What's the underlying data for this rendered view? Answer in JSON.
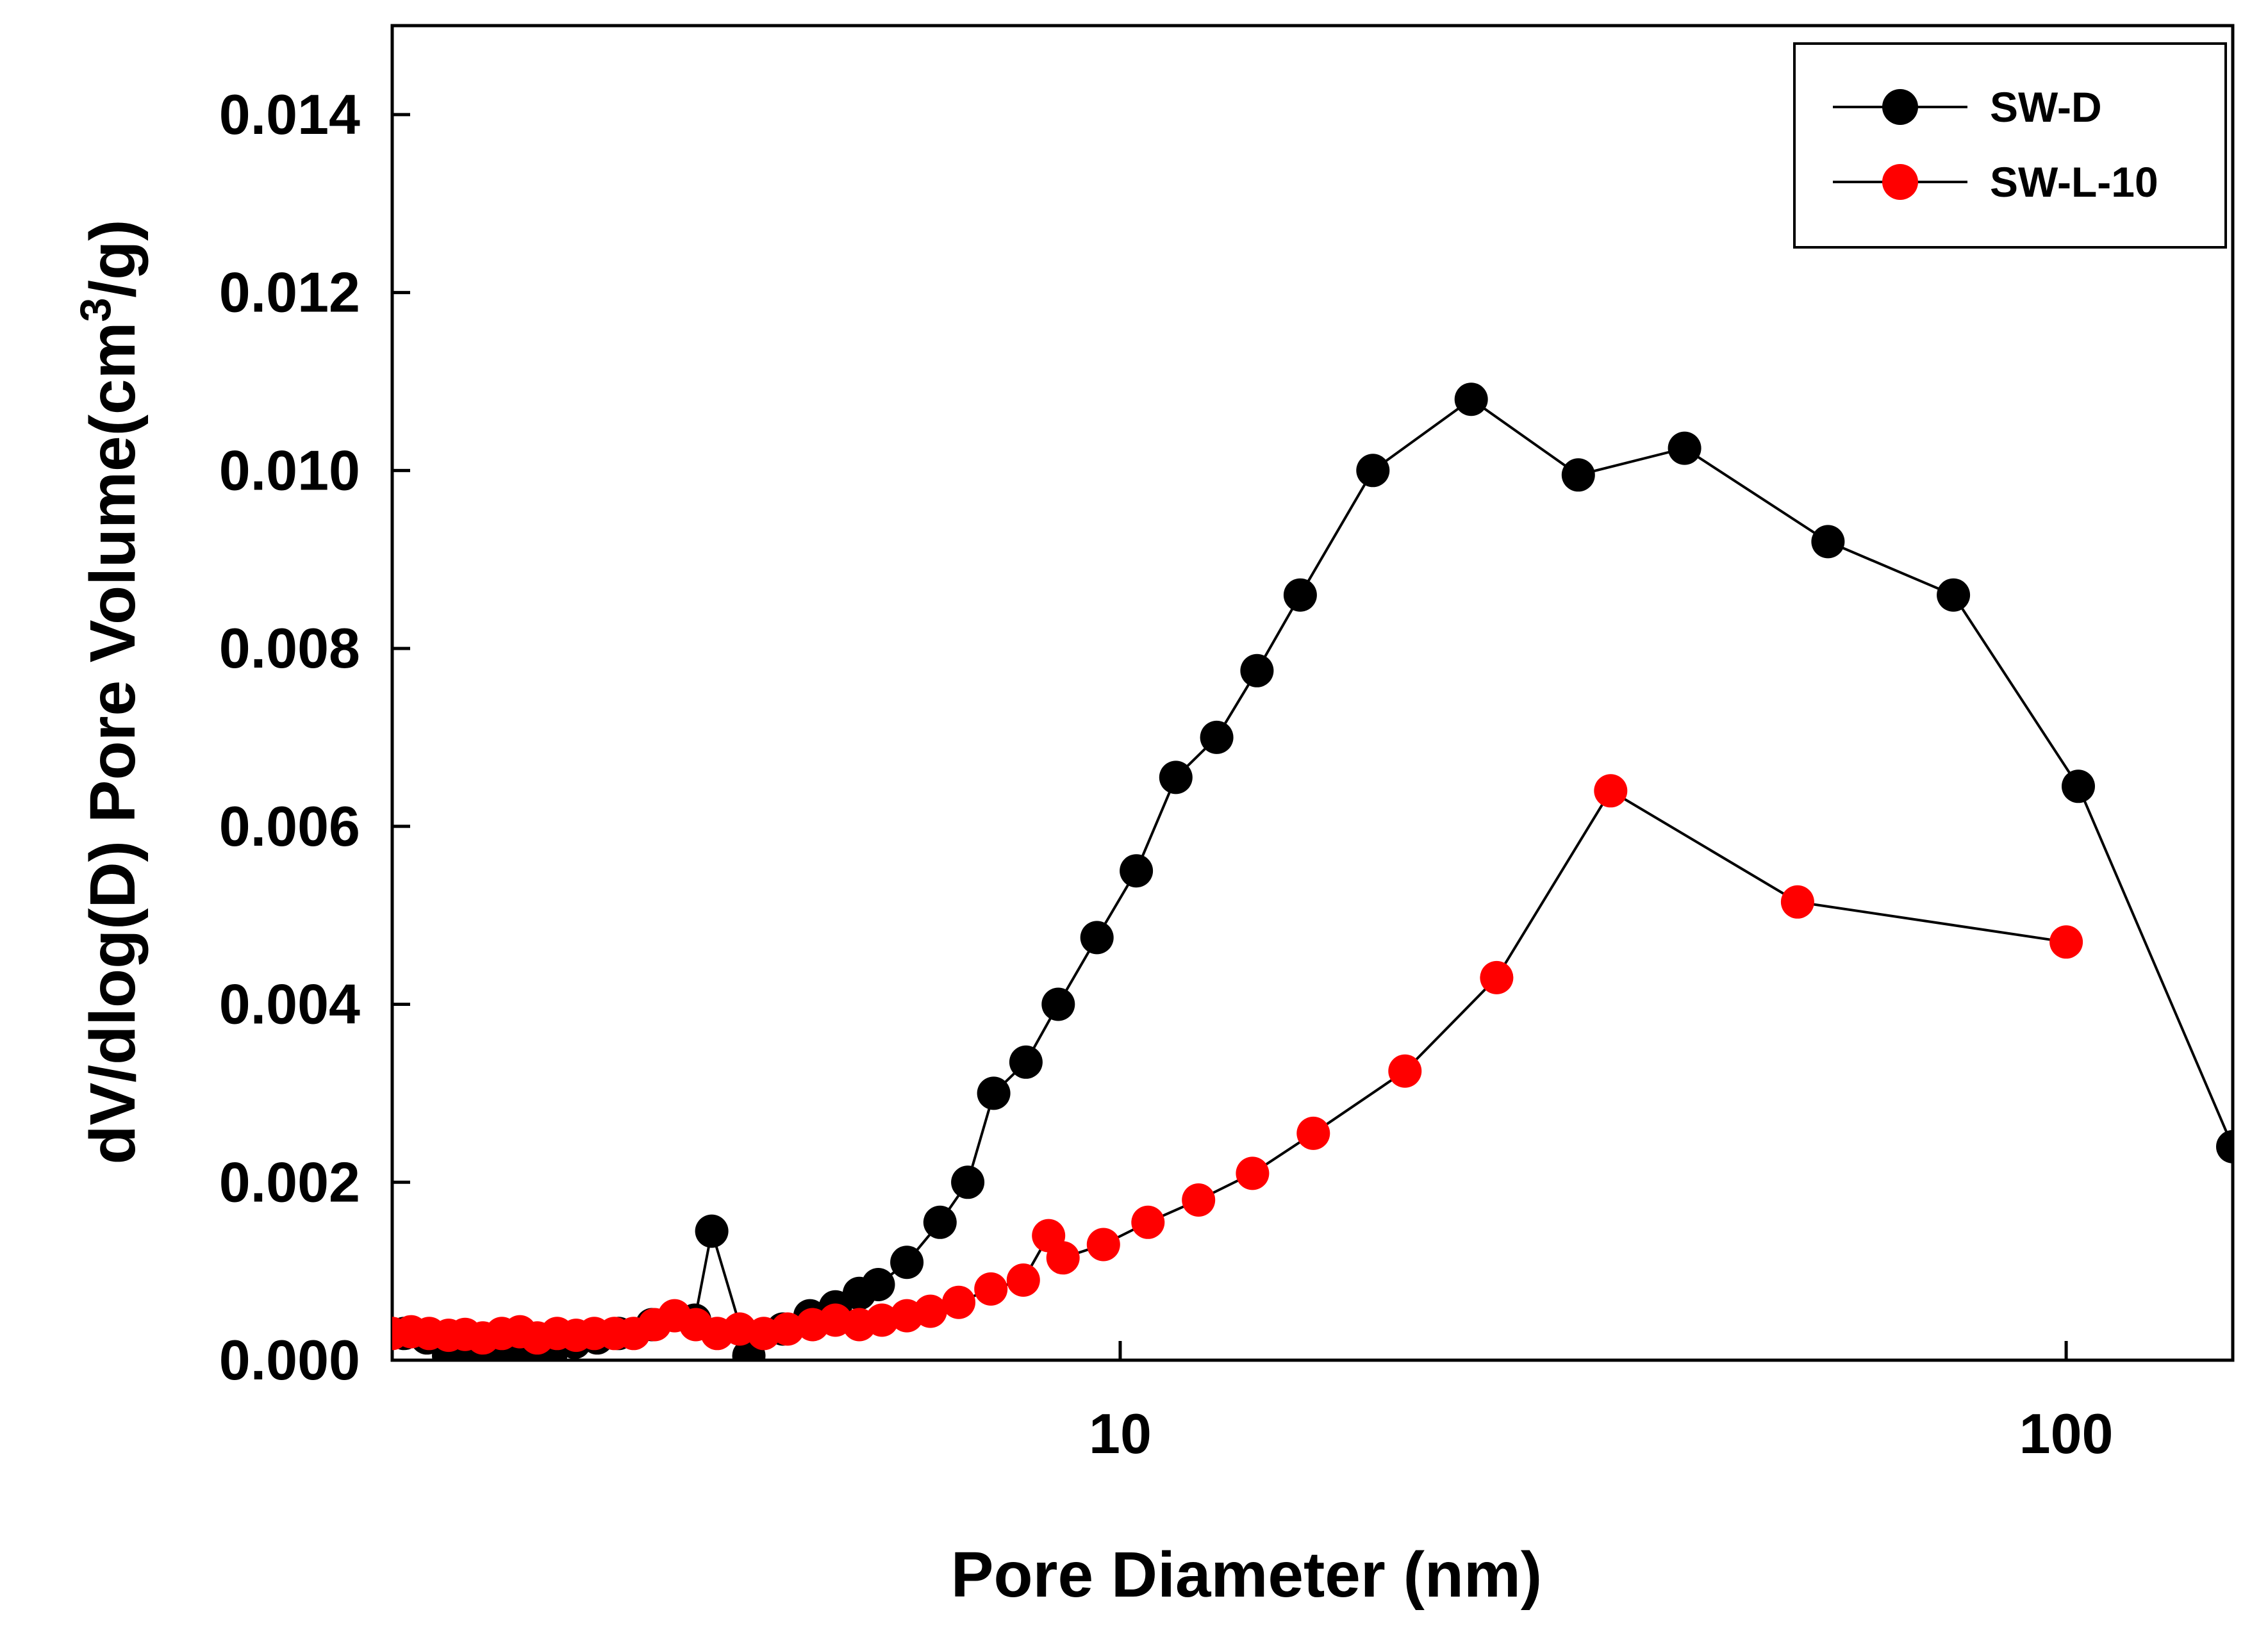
{
  "chart_data": {
    "type": "scatter",
    "title": "",
    "xlabel": "Pore Diameter (nm)",
    "ylabel_main": "dV/dlog(D) Pore Volume(cm",
    "ylabel_sup": "3",
    "ylabel_tail": "/g)",
    "xscale": "log",
    "xlim": [
      1.7,
      150
    ],
    "ylim": [
      0,
      0.015
    ],
    "x_ticks": [
      {
        "value": 10,
        "label": "10"
      },
      {
        "value": 100,
        "label": "100"
      }
    ],
    "y_ticks": [
      {
        "value": 0.0,
        "label": "0.000"
      },
      {
        "value": 0.002,
        "label": "0.002"
      },
      {
        "value": 0.004,
        "label": "0.004"
      },
      {
        "value": 0.006,
        "label": "0.006"
      },
      {
        "value": 0.008,
        "label": "0.008"
      },
      {
        "value": 0.01,
        "label": "0.010"
      },
      {
        "value": 0.012,
        "label": "0.012"
      },
      {
        "value": 0.014,
        "label": "0.014"
      }
    ],
    "grid": false,
    "legend_position": "top-right",
    "series": [
      {
        "name": "SW-D",
        "color": "#000000",
        "points": [
          [
            1.75,
            0.0003
          ],
          [
            1.85,
            0.00025
          ],
          [
            1.95,
            5e-05
          ],
          [
            2.05,
            0.00015
          ],
          [
            2.15,
            0.0001
          ],
          [
            2.25,
            0.00015
          ],
          [
            2.38,
            0.0
          ],
          [
            2.5,
            5e-05
          ],
          [
            2.65,
            0.0002
          ],
          [
            2.8,
            0.00025
          ],
          [
            2.95,
            0.0003
          ],
          [
            3.2,
            0.0004
          ],
          [
            3.55,
            0.00045
          ],
          [
            3.7,
            0.00145
          ],
          [
            4.05,
            5e-05
          ],
          [
            4.4,
            0.00035
          ],
          [
            4.7,
            0.0005
          ],
          [
            5.0,
            0.0006
          ],
          [
            5.3,
            0.00075
          ],
          [
            5.55,
            0.00085
          ],
          [
            5.95,
            0.0011
          ],
          [
            6.45,
            0.00155
          ],
          [
            6.9,
            0.002
          ],
          [
            7.35,
            0.003
          ],
          [
            7.95,
            0.00335
          ],
          [
            8.6,
            0.004
          ],
          [
            9.45,
            0.00475
          ],
          [
            10.4,
            0.0055
          ],
          [
            11.45,
            0.00655
          ],
          [
            12.65,
            0.007
          ],
          [
            13.95,
            0.00775
          ],
          [
            15.5,
            0.0086
          ],
          [
            18.5,
            0.01
          ],
          [
            23.5,
            0.0108
          ],
          [
            30.5,
            0.00995
          ],
          [
            39.5,
            0.01025
          ],
          [
            56.0,
            0.0092
          ],
          [
            76.0,
            0.0086
          ],
          [
            103.0,
            0.00645
          ],
          [
            150.0,
            0.0024
          ]
        ]
      },
      {
        "name": "SW-L-10",
        "color": "#ff0000",
        "points": [
          [
            1.7,
            0.0003
          ],
          [
            1.78,
            0.00032
          ],
          [
            1.86,
            0.0003
          ],
          [
            1.95,
            0.00028
          ],
          [
            2.03,
            0.00029
          ],
          [
            2.12,
            0.00025
          ],
          [
            2.22,
            0.0003
          ],
          [
            2.32,
            0.00032
          ],
          [
            2.42,
            0.00025
          ],
          [
            2.54,
            0.0003
          ],
          [
            2.66,
            0.00028
          ],
          [
            2.78,
            0.0003
          ],
          [
            2.92,
            0.0003
          ],
          [
            3.06,
            0.0003
          ],
          [
            3.22,
            0.0004
          ],
          [
            3.38,
            0.0005
          ],
          [
            3.56,
            0.0004
          ],
          [
            3.75,
            0.0003
          ],
          [
            3.96,
            0.00035
          ],
          [
            4.2,
            0.0003
          ],
          [
            4.45,
            0.00035
          ],
          [
            4.73,
            0.0004
          ],
          [
            5.0,
            0.00045
          ],
          [
            5.3,
            0.0004
          ],
          [
            5.6,
            0.00045
          ],
          [
            5.95,
            0.0005
          ],
          [
            6.3,
            0.00055
          ],
          [
            6.75,
            0.00065
          ],
          [
            7.3,
            0.0008
          ],
          [
            7.9,
            0.0009
          ],
          [
            8.4,
            0.0014
          ],
          [
            8.7,
            0.00115
          ],
          [
            9.6,
            0.0013
          ],
          [
            10.7,
            0.00155
          ],
          [
            12.1,
            0.0018
          ],
          [
            13.8,
            0.0021
          ],
          [
            16.0,
            0.00255
          ],
          [
            20.0,
            0.00325
          ],
          [
            25.0,
            0.0043
          ],
          [
            33.0,
            0.0064
          ],
          [
            52.0,
            0.00515
          ],
          [
            100.0,
            0.0047
          ]
        ]
      }
    ]
  }
}
